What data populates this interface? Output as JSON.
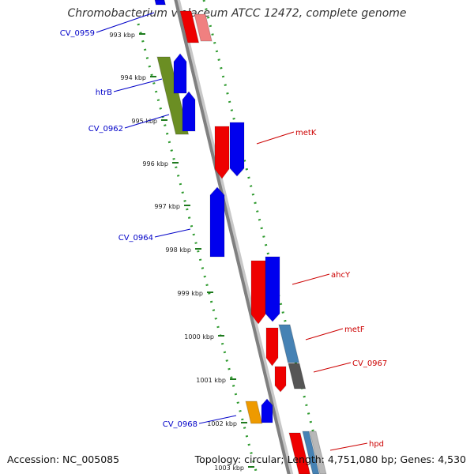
{
  "title": "Chromobacterium violaceum ATCC 12472, complete genome",
  "accession": "Accession: NC_005085",
  "topology": "Topology: circular; Length: 4,751,080 bp; Genes: 4,530",
  "colors": {
    "backbone": "#808080",
    "tick_major": "#1e7a1e",
    "tick_minor": "#2e9a2e",
    "forward_label": "#0000c8",
    "reverse_label": "#cc0000",
    "gene_blue": "#0000ee",
    "gene_red": "#ee0000",
    "gene_green": "#6b8e23",
    "gene_steel": "#4682b4",
    "gene_gray": "#555555",
    "gene_orange": "#ee9a00",
    "gene_pink": "#f08080"
  },
  "ruler_labels": [
    "993 kbp",
    "994 kbp",
    "995 kbp",
    "996 kbp",
    "997 kbp",
    "998 kbp",
    "999 kbp",
    "1000 kbp",
    "1001 kbp",
    "1002 kbp",
    "1003 kbp"
  ],
  "gene_labels": {
    "cv0959": "CV_0959",
    "htrb": "htrB",
    "cv0962": "CV_0962",
    "cv0964": "CV_0964",
    "cv0968": "CV_0968",
    "metk": "metK",
    "ahcy": "ahcY",
    "metf": "metF",
    "cv0967": "CV_0967",
    "hpd": "hpd"
  }
}
